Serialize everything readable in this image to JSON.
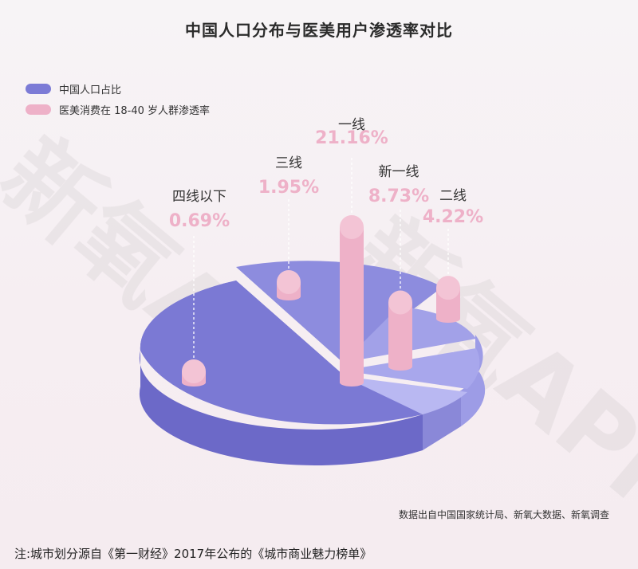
{
  "title": "中国人口分布与医美用户渗透率对比",
  "legend": [
    {
      "label": "中国人口占比",
      "color": "#7c7bd6"
    },
    {
      "label": "医美消费在 18-40 岁人群渗透率",
      "color": "#eeb1c8"
    }
  ],
  "source": "数据出自中国国家统计局、新氧大数据、新氧调查",
  "note": "注:城市划分源自《第一财经》2017年公布的《城市商业魅力榜单》",
  "watermark": "新氧APP",
  "colors": {
    "pie_main": "#7c7bd6",
    "pie_main_side": "#6c69c8",
    "pie_light": "#9392e0",
    "pie_lighter": "#b0aff0",
    "cylinder": "#eeb1c8",
    "cylinder_top": "#f3c4d5",
    "label_value": "#eeb1c8",
    "label_name": "#333333"
  },
  "chart_data": {
    "type": "pie",
    "title": "中国人口分布与医美用户渗透率对比",
    "categories": [
      "四线以下",
      "三线",
      "一线",
      "新一线",
      "二线"
    ],
    "series": [
      {
        "name": "医美消费在 18-40 岁人群渗透率",
        "values": [
          0.69,
          1.95,
          21.16,
          8.73,
          4.22
        ],
        "unit": "%"
      }
    ],
    "value_labels": [
      "0.69%",
      "1.95%",
      "21.16%",
      "8.73%",
      "4.22%"
    ]
  }
}
